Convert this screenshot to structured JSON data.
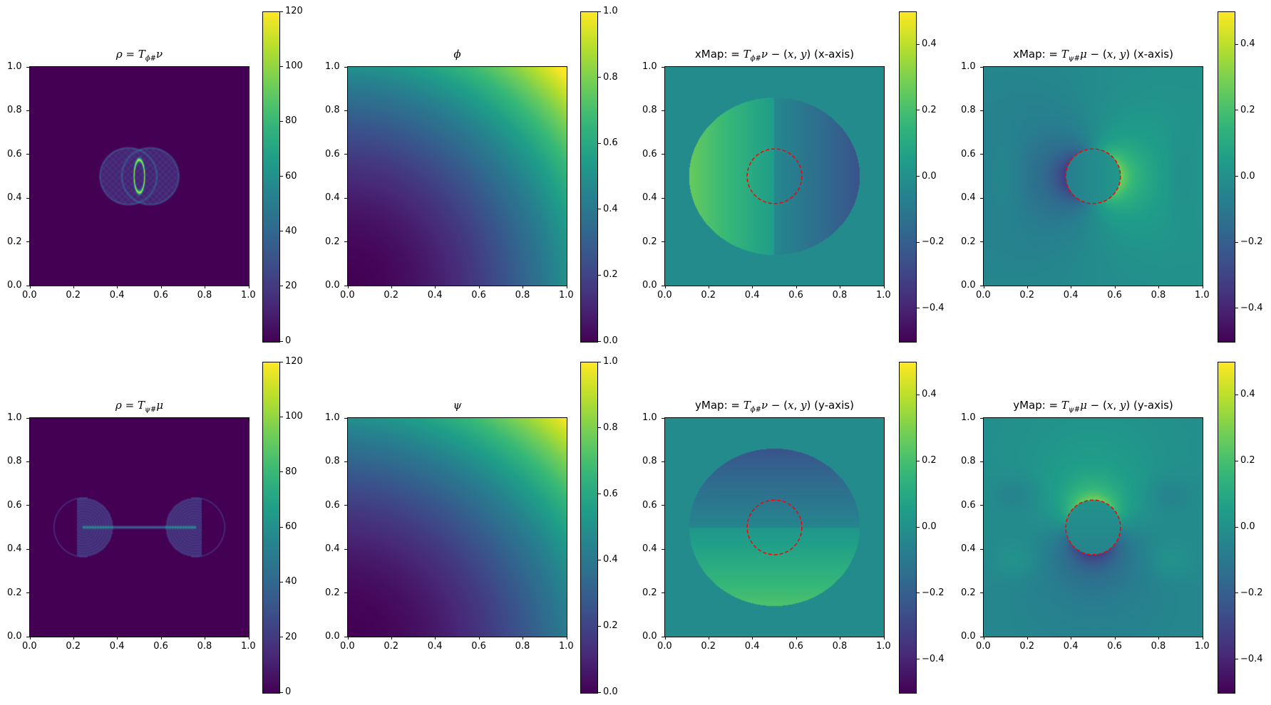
{
  "chart_data": [
    {
      "id": "rho_phi",
      "type": "heatmap",
      "colormap": "viridis",
      "title_parts": [
        [
          "ρ = ",
          "i"
        ],
        [
          "T",
          "i"
        ],
        [
          "ϕ#",
          "sub"
        ],
        [
          "ν",
          "i"
        ]
      ],
      "xlim": [
        0,
        1
      ],
      "ylim": [
        0,
        1
      ],
      "xticks": [
        "0.0",
        "0.2",
        "0.4",
        "0.6",
        "0.8",
        "1.0"
      ],
      "yticks": [
        "0.0",
        "0.2",
        "0.4",
        "0.6",
        "0.8",
        "1.0"
      ],
      "colorbar": {
        "range": [
          0,
          120
        ],
        "ticks": [
          0,
          20,
          40,
          60,
          80,
          100,
          120
        ],
        "tick_labels": [
          "0",
          "20",
          "40",
          "60",
          "80",
          "100",
          "120"
        ]
      },
      "circle": null
    },
    {
      "id": "phi",
      "type": "heatmap",
      "colormap": "viridis",
      "title_parts": [
        [
          "ϕ",
          "i"
        ]
      ],
      "xlim": [
        0,
        1
      ],
      "ylim": [
        0,
        1
      ],
      "xticks": [
        "0.0",
        "0.2",
        "0.4",
        "0.6",
        "0.8",
        "1.0"
      ],
      "yticks": [
        "0.0",
        "0.2",
        "0.4",
        "0.6",
        "0.8",
        "1.0"
      ],
      "colorbar": {
        "range": [
          0,
          1
        ],
        "ticks": [
          0,
          0.2,
          0.4,
          0.6,
          0.8,
          1.0
        ],
        "tick_labels": [
          "0.0",
          "0.2",
          "0.4",
          "0.6",
          "0.8",
          "1.0"
        ]
      },
      "circle": null
    },
    {
      "id": "xmap_phi",
      "type": "heatmap",
      "colormap": "viridis",
      "title_parts": [
        [
          "xMap:  = ",
          "n"
        ],
        [
          "T",
          "i"
        ],
        [
          "ϕ#",
          "sub"
        ],
        [
          "ν",
          "i"
        ],
        [
          " − (",
          "n"
        ],
        [
          "x",
          "i"
        ],
        [
          ", ",
          "n"
        ],
        [
          "y",
          "i"
        ],
        [
          ") (x-axis)",
          "n"
        ]
      ],
      "xlim": [
        0,
        1
      ],
      "ylim": [
        0,
        1
      ],
      "xticks": [
        "0.0",
        "0.2",
        "0.4",
        "0.6",
        "0.8",
        "1.0"
      ],
      "yticks": [
        "0.0",
        "0.2",
        "0.4",
        "0.6",
        "0.8",
        "1.0"
      ],
      "colorbar": {
        "range": [
          -0.5,
          0.5
        ],
        "ticks": [
          -0.4,
          -0.2,
          0,
          0.2,
          0.4
        ],
        "tick_labels": [
          "−0.4",
          "−0.2",
          "0.0",
          "0.2",
          "0.4"
        ]
      },
      "circle": {
        "center": [
          0.5,
          0.5
        ],
        "radius": 0.125,
        "color": "#ff0000",
        "style": "dashed"
      }
    },
    {
      "id": "xmap_psi",
      "type": "heatmap",
      "colormap": "viridis",
      "title_parts": [
        [
          "xMap:  = ",
          "n"
        ],
        [
          "T",
          "i"
        ],
        [
          "ψ#",
          "sub"
        ],
        [
          "μ",
          "i"
        ],
        [
          " − (",
          "n"
        ],
        [
          "x",
          "i"
        ],
        [
          ", ",
          "n"
        ],
        [
          "y",
          "i"
        ],
        [
          ") (x-axis)",
          "n"
        ]
      ],
      "xlim": [
        0,
        1
      ],
      "ylim": [
        0,
        1
      ],
      "xticks": [
        "0.0",
        "0.2",
        "0.4",
        "0.6",
        "0.8",
        "1.0"
      ],
      "yticks": [
        "0.0",
        "0.2",
        "0.4",
        "0.6",
        "0.8",
        "1.0"
      ],
      "colorbar": {
        "range": [
          -0.5,
          0.5
        ],
        "ticks": [
          -0.4,
          -0.2,
          0,
          0.2,
          0.4
        ],
        "tick_labels": [
          "−0.4",
          "−0.2",
          "0.0",
          "0.2",
          "0.4"
        ]
      },
      "circle": {
        "center": [
          0.5,
          0.5
        ],
        "radius": 0.125,
        "color": "#ff0000",
        "style": "dashed"
      }
    },
    {
      "id": "rho_psi",
      "type": "heatmap",
      "colormap": "viridis",
      "title_parts": [
        [
          "ρ = ",
          "i"
        ],
        [
          "T",
          "i"
        ],
        [
          "ψ#",
          "sub"
        ],
        [
          "μ",
          "i"
        ]
      ],
      "xlim": [
        0,
        1
      ],
      "ylim": [
        0,
        1
      ],
      "xticks": [
        "0.0",
        "0.2",
        "0.4",
        "0.6",
        "0.8",
        "1.0"
      ],
      "yticks": [
        "0.0",
        "0.2",
        "0.4",
        "0.6",
        "0.8",
        "1.0"
      ],
      "colorbar": {
        "range": [
          0,
          120
        ],
        "ticks": [
          0,
          20,
          40,
          60,
          80,
          100,
          120
        ],
        "tick_labels": [
          "0",
          "20",
          "40",
          "60",
          "80",
          "100",
          "120"
        ]
      },
      "circle": null
    },
    {
      "id": "psi",
      "type": "heatmap",
      "colormap": "viridis",
      "title_parts": [
        [
          "ψ",
          "i"
        ]
      ],
      "xlim": [
        0,
        1
      ],
      "ylim": [
        0,
        1
      ],
      "xticks": [
        "0.0",
        "0.2",
        "0.4",
        "0.6",
        "0.8",
        "1.0"
      ],
      "yticks": [
        "0.0",
        "0.2",
        "0.4",
        "0.6",
        "0.8",
        "1.0"
      ],
      "colorbar": {
        "range": [
          0,
          1
        ],
        "ticks": [
          0,
          0.2,
          0.4,
          0.6,
          0.8,
          1.0
        ],
        "tick_labels": [
          "0.0",
          "0.2",
          "0.4",
          "0.6",
          "0.8",
          "1.0"
        ]
      },
      "circle": null
    },
    {
      "id": "ymap_phi",
      "type": "heatmap",
      "colormap": "viridis",
      "title_parts": [
        [
          "yMap:  = ",
          "n"
        ],
        [
          "T",
          "i"
        ],
        [
          "ϕ#",
          "sub"
        ],
        [
          "ν",
          "i"
        ],
        [
          " − (",
          "n"
        ],
        [
          "x",
          "i"
        ],
        [
          ", ",
          "n"
        ],
        [
          "y",
          "i"
        ],
        [
          ") (y-axis)",
          "n"
        ]
      ],
      "xlim": [
        0,
        1
      ],
      "ylim": [
        0,
        1
      ],
      "xticks": [
        "0.0",
        "0.2",
        "0.4",
        "0.6",
        "0.8",
        "1.0"
      ],
      "yticks": [
        "0.0",
        "0.2",
        "0.4",
        "0.6",
        "0.8",
        "1.0"
      ],
      "colorbar": {
        "range": [
          -0.5,
          0.5
        ],
        "ticks": [
          -0.4,
          -0.2,
          0,
          0.2,
          0.4
        ],
        "tick_labels": [
          "−0.4",
          "−0.2",
          "0.0",
          "0.2",
          "0.4"
        ]
      },
      "circle": {
        "center": [
          0.5,
          0.5
        ],
        "radius": 0.125,
        "color": "#ff0000",
        "style": "dashed"
      }
    },
    {
      "id": "ymap_psi",
      "type": "heatmap",
      "colormap": "viridis",
      "title_parts": [
        [
          "yMap:  = ",
          "n"
        ],
        [
          "T",
          "i"
        ],
        [
          "ψ#",
          "sub"
        ],
        [
          "μ",
          "i"
        ],
        [
          " − (",
          "n"
        ],
        [
          "x",
          "i"
        ],
        [
          ", ",
          "n"
        ],
        [
          "y",
          "i"
        ],
        [
          ") (y-axis)",
          "n"
        ]
      ],
      "xlim": [
        0,
        1
      ],
      "ylim": [
        0,
        1
      ],
      "xticks": [
        "0.0",
        "0.2",
        "0.4",
        "0.6",
        "0.8",
        "1.0"
      ],
      "yticks": [
        "0.0",
        "0.2",
        "0.4",
        "0.6",
        "0.8",
        "1.0"
      ],
      "colorbar": {
        "range": [
          -0.5,
          0.5
        ],
        "ticks": [
          -0.4,
          -0.2,
          0,
          0.2,
          0.4
        ],
        "tick_labels": [
          "−0.4",
          "−0.2",
          "0.0",
          "0.2",
          "0.4"
        ]
      },
      "circle": {
        "center": [
          0.5,
          0.5
        ],
        "radius": 0.125,
        "color": "#ff0000",
        "style": "dashed"
      }
    }
  ]
}
